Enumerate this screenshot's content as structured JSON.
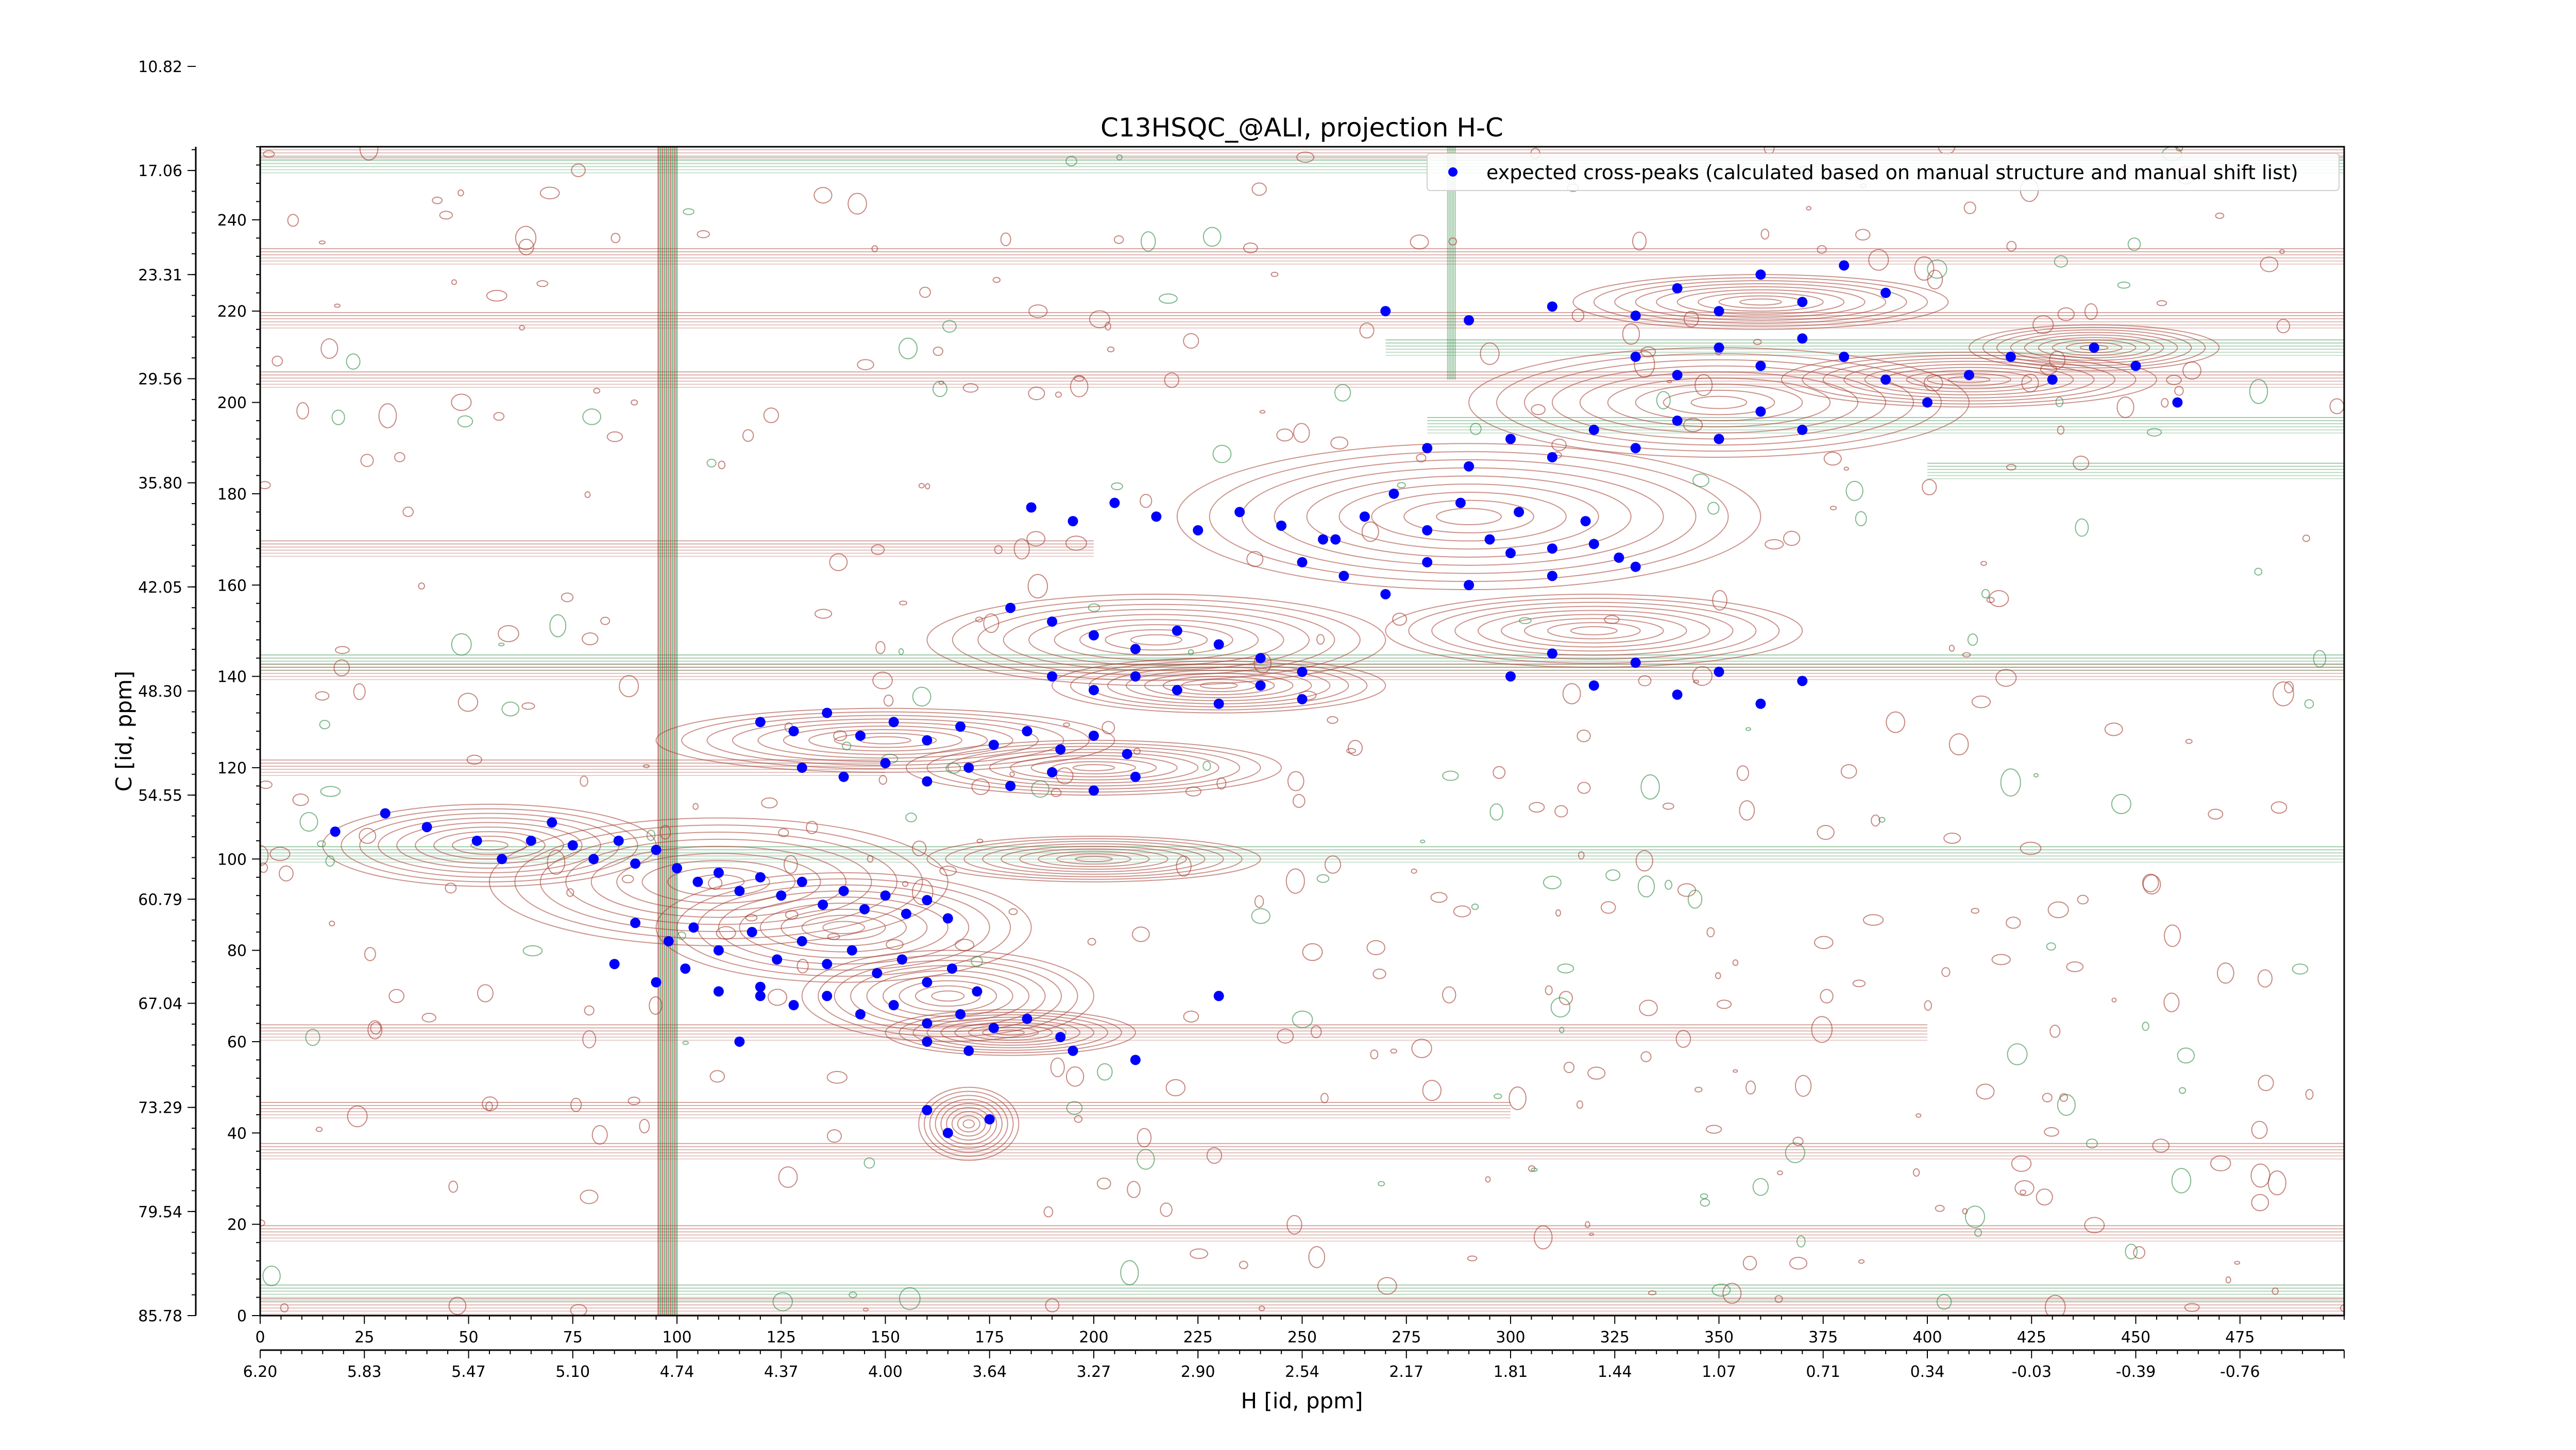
{
  "chart_data": {
    "type": "scatter",
    "title": "C13HSQC_@ALI, projection H-C",
    "xlabel": "H [id, ppm]",
    "ylabel": "C [id, ppm]",
    "xlim": [
      0,
      500
    ],
    "ylim": [
      0,
      256
    ],
    "x_ticks": [
      0,
      25,
      50,
      75,
      100,
      125,
      150,
      175,
      200,
      225,
      250,
      275,
      300,
      325,
      350,
      375,
      400,
      425,
      450,
      475
    ],
    "y_ticks": [
      0,
      20,
      40,
      60,
      80,
      100,
      120,
      140,
      160,
      180,
      200,
      220,
      240
    ],
    "secondary_x_ticks": [
      {
        "at": 0,
        "label": "6.20"
      },
      {
        "at": 25,
        "label": "5.83"
      },
      {
        "at": 50,
        "label": "5.47"
      },
      {
        "at": 75,
        "label": "5.10"
      },
      {
        "at": 100,
        "label": "4.74"
      },
      {
        "at": 125,
        "label": "4.37"
      },
      {
        "at": 150,
        "label": "4.00"
      },
      {
        "at": 175,
        "label": "3.64"
      },
      {
        "at": 200,
        "label": "3.27"
      },
      {
        "at": 225,
        "label": "2.90"
      },
      {
        "at": 250,
        "label": "2.54"
      },
      {
        "at": 275,
        "label": "2.17"
      },
      {
        "at": 300,
        "label": "1.81"
      },
      {
        "at": 325,
        "label": "1.44"
      },
      {
        "at": 350,
        "label": "1.07"
      },
      {
        "at": 375,
        "label": "0.71"
      },
      {
        "at": 400,
        "label": "0.34"
      },
      {
        "at": 425,
        "label": "-0.03"
      },
      {
        "at": 450,
        "label": "-0.39"
      },
      {
        "at": 475,
        "label": "-0.76"
      }
    ],
    "secondary_y_ticks": [
      {
        "at": 0,
        "label": "85.78"
      },
      {
        "at": 22.8,
        "label": "79.54"
      },
      {
        "at": 45.6,
        "label": "73.29"
      },
      {
        "at": 68.4,
        "label": "67.04"
      },
      {
        "at": 91.2,
        "label": "60.79"
      },
      {
        "at": 114,
        "label": "54.55"
      },
      {
        "at": 136.8,
        "label": "48.30"
      },
      {
        "at": 159.6,
        "label": "42.05"
      },
      {
        "at": 182.4,
        "label": "35.80"
      },
      {
        "at": 205.2,
        "label": "29.56"
      },
      {
        "at": 228,
        "label": "23.31"
      },
      {
        "at": 250.8,
        "label": "17.06"
      },
      {
        "at": 273.6,
        "label": "10.82"
      }
    ],
    "legend": {
      "placement": "top-right",
      "label": "expected cross-peaks (calculated based on manual structure and manual shift list)"
    },
    "colors": {
      "positive_contour": "#a33a2e",
      "negative_contour": "#2f8a43",
      "peak_marker": "#0000ff"
    },
    "series": [
      {
        "name": "expected cross-peaks (calculated based on manual structure and manual shift list)",
        "points": [
          [
            18,
            106
          ],
          [
            30,
            110
          ],
          [
            40,
            107
          ],
          [
            52,
            104
          ],
          [
            58,
            100
          ],
          [
            65,
            104
          ],
          [
            70,
            108
          ],
          [
            75,
            103
          ],
          [
            80,
            100
          ],
          [
            86,
            104
          ],
          [
            90,
            99
          ],
          [
            95,
            102
          ],
          [
            100,
            98
          ],
          [
            105,
            95
          ],
          [
            110,
            97
          ],
          [
            115,
            93
          ],
          [
            120,
            96
          ],
          [
            125,
            92
          ],
          [
            130,
            95
          ],
          [
            135,
            90
          ],
          [
            140,
            93
          ],
          [
            145,
            89
          ],
          [
            150,
            92
          ],
          [
            155,
            88
          ],
          [
            160,
            91
          ],
          [
            165,
            87
          ],
          [
            90,
            86
          ],
          [
            98,
            82
          ],
          [
            104,
            85
          ],
          [
            110,
            80
          ],
          [
            118,
            84
          ],
          [
            124,
            78
          ],
          [
            130,
            82
          ],
          [
            136,
            77
          ],
          [
            142,
            80
          ],
          [
            148,
            75
          ],
          [
            154,
            78
          ],
          [
            160,
            73
          ],
          [
            166,
            76
          ],
          [
            172,
            71
          ],
          [
            85,
            77
          ],
          [
            95,
            73
          ],
          [
            102,
            76
          ],
          [
            110,
            71
          ],
          [
            120,
            72
          ],
          [
            128,
            68
          ],
          [
            136,
            70
          ],
          [
            144,
            66
          ],
          [
            152,
            68
          ],
          [
            160,
            64
          ],
          [
            168,
            66
          ],
          [
            176,
            63
          ],
          [
            184,
            65
          ],
          [
            192,
            61
          ],
          [
            120,
            130
          ],
          [
            128,
            128
          ],
          [
            136,
            132
          ],
          [
            144,
            127
          ],
          [
            152,
            130
          ],
          [
            160,
            126
          ],
          [
            168,
            129
          ],
          [
            176,
            125
          ],
          [
            184,
            128
          ],
          [
            192,
            124
          ],
          [
            200,
            127
          ],
          [
            208,
            123
          ],
          [
            130,
            120
          ],
          [
            140,
            118
          ],
          [
            150,
            121
          ],
          [
            160,
            117
          ],
          [
            170,
            120
          ],
          [
            180,
            116
          ],
          [
            190,
            119
          ],
          [
            200,
            115
          ],
          [
            210,
            118
          ],
          [
            180,
            155
          ],
          [
            190,
            152
          ],
          [
            200,
            149
          ],
          [
            210,
            146
          ],
          [
            220,
            150
          ],
          [
            230,
            147
          ],
          [
            240,
            144
          ],
          [
            250,
            141
          ],
          [
            190,
            140
          ],
          [
            200,
            137
          ],
          [
            210,
            140
          ],
          [
            220,
            137
          ],
          [
            230,
            134
          ],
          [
            240,
            138
          ],
          [
            250,
            135
          ],
          [
            185,
            177
          ],
          [
            195,
            174
          ],
          [
            205,
            178
          ],
          [
            215,
            175
          ],
          [
            225,
            172
          ],
          [
            235,
            176
          ],
          [
            245,
            173
          ],
          [
            255,
            170
          ],
          [
            250,
            165
          ],
          [
            258,
            170
          ],
          [
            265,
            175
          ],
          [
            272,
            180
          ],
          [
            280,
            172
          ],
          [
            288,
            178
          ],
          [
            295,
            170
          ],
          [
            302,
            176
          ],
          [
            310,
            168
          ],
          [
            318,
            174
          ],
          [
            326,
            166
          ],
          [
            260,
            162
          ],
          [
            270,
            158
          ],
          [
            280,
            165
          ],
          [
            290,
            160
          ],
          [
            300,
            167
          ],
          [
            310,
            162
          ],
          [
            320,
            169
          ],
          [
            330,
            164
          ],
          [
            280,
            190
          ],
          [
            290,
            186
          ],
          [
            300,
            192
          ],
          [
            310,
            188
          ],
          [
            320,
            194
          ],
          [
            330,
            190
          ],
          [
            340,
            196
          ],
          [
            350,
            192
          ],
          [
            360,
            198
          ],
          [
            370,
            194
          ],
          [
            300,
            140
          ],
          [
            310,
            145
          ],
          [
            320,
            138
          ],
          [
            330,
            143
          ],
          [
            340,
            136
          ],
          [
            350,
            141
          ],
          [
            360,
            134
          ],
          [
            370,
            139
          ],
          [
            330,
            210
          ],
          [
            340,
            206
          ],
          [
            350,
            212
          ],
          [
            360,
            208
          ],
          [
            370,
            214
          ],
          [
            380,
            210
          ],
          [
            390,
            205
          ],
          [
            400,
            200
          ],
          [
            410,
            206
          ],
          [
            340,
            225
          ],
          [
            350,
            220
          ],
          [
            360,
            228
          ],
          [
            370,
            222
          ],
          [
            380,
            230
          ],
          [
            390,
            224
          ],
          [
            420,
            210
          ],
          [
            430,
            205
          ],
          [
            440,
            212
          ],
          [
            450,
            208
          ],
          [
            460,
            200
          ],
          [
            270,
            220
          ],
          [
            290,
            218
          ],
          [
            310,
            221
          ],
          [
            330,
            219
          ],
          [
            120,
            70
          ],
          [
            115,
            60
          ],
          [
            160,
            60
          ],
          [
            170,
            58
          ],
          [
            195,
            58
          ],
          [
            210,
            56
          ],
          [
            230,
            70
          ],
          [
            160,
            45
          ],
          [
            165,
            40
          ],
          [
            175,
            43
          ]
        ]
      }
    ]
  }
}
